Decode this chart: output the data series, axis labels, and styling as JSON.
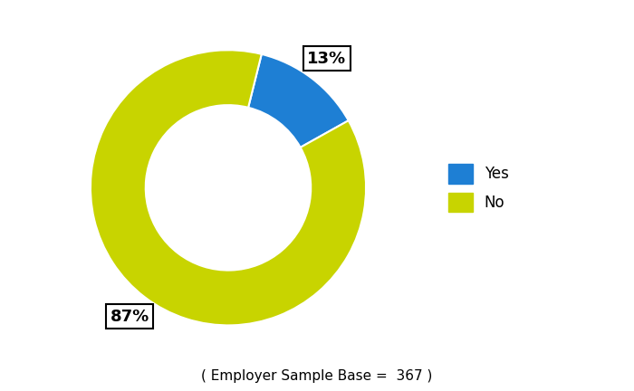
{
  "slices": [
    13,
    87
  ],
  "labels": [
    "Yes",
    "No"
  ],
  "colors": [
    "#1e7fd4",
    "#c8d400"
  ],
  "pct_labels": [
    "13%",
    "87%"
  ],
  "legend_labels": [
    "Yes",
    "No"
  ],
  "donut_hole": 0.6,
  "start_angle": 76,
  "footer_text": "( Employer Sample Base =  367 )",
  "background_color": "#ffffff",
  "label_fontsize": 13,
  "legend_fontsize": 12,
  "footer_fontsize": 11
}
